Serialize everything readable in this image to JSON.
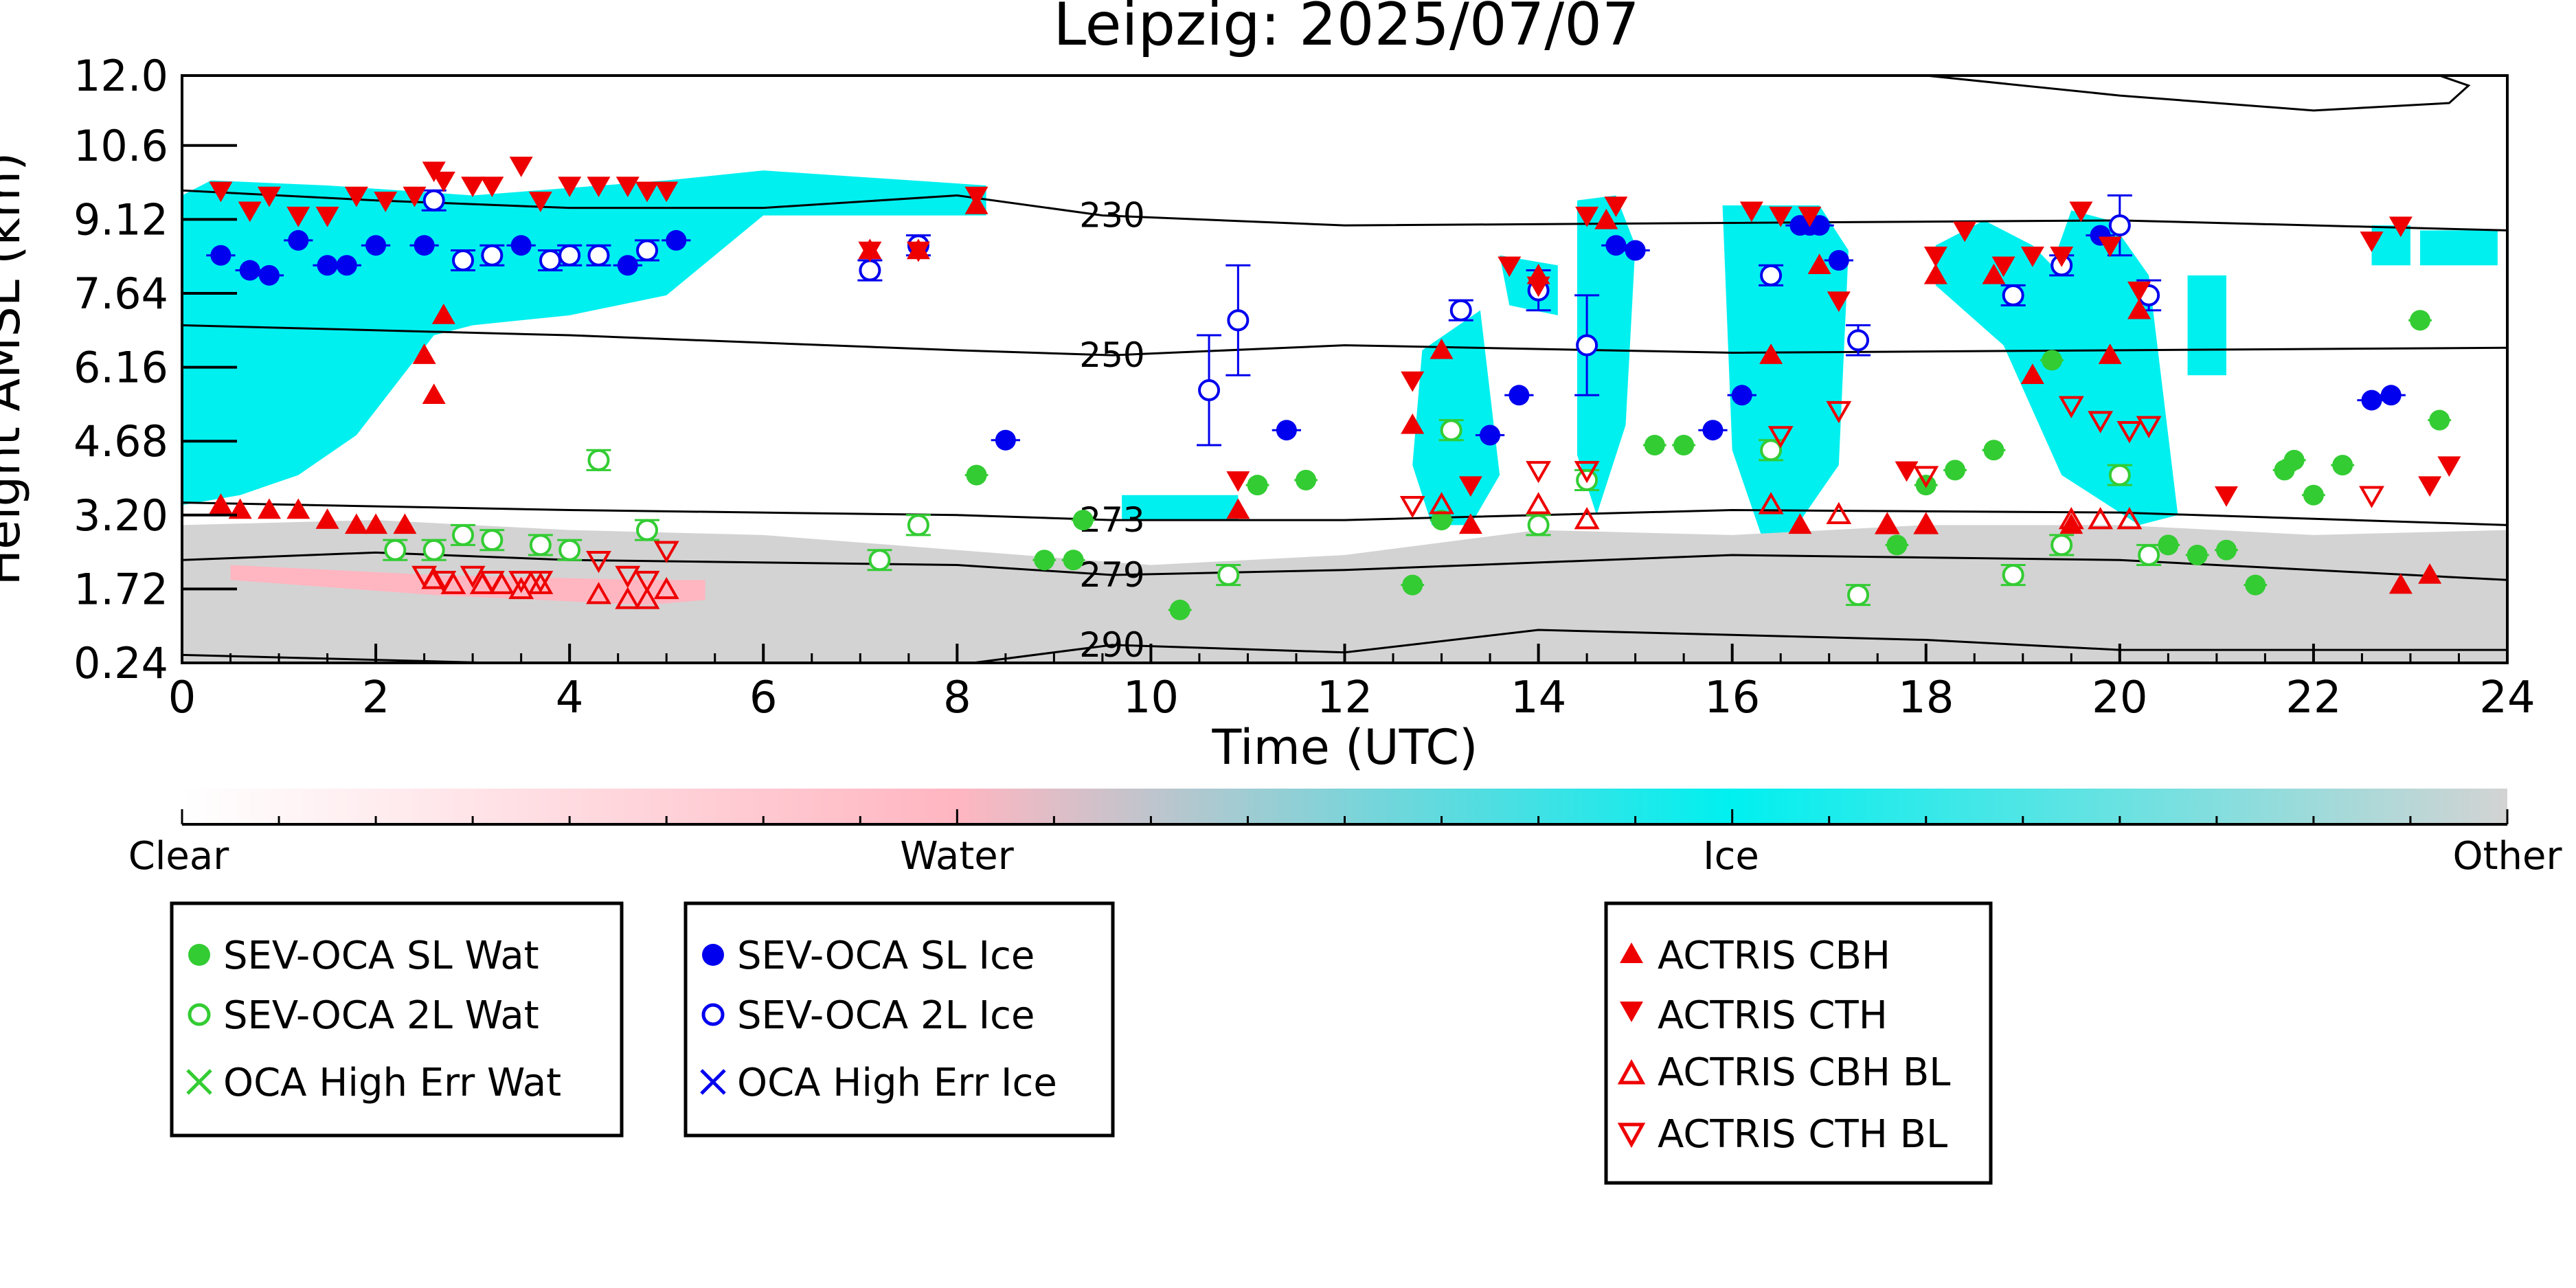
{
  "chart_data": {
    "type": "scatter",
    "title": "Leipzig: 2025/07/07",
    "xlabel": "Time (UTC)",
    "ylabel": "Height AMSL (km)",
    "xlim": [
      0,
      24
    ],
    "ylim": [
      0.24,
      12.0
    ],
    "x_ticks": [
      "0",
      "2",
      "4",
      "6",
      "8",
      "10",
      "12",
      "14",
      "16",
      "18",
      "20",
      "22",
      "24"
    ],
    "y_ticks": [
      "0.24",
      "1.72",
      "3.20",
      "4.68",
      "6.16",
      "7.64",
      "9.12",
      "10.6",
      "12.0"
    ],
    "colorbar": {
      "labels": [
        "Clear",
        "Water",
        "Ice",
        "Other"
      ],
      "colors": [
        "#ffffff",
        "#ffb6c1",
        "#00f0f0",
        "#d3d3d3"
      ]
    },
    "colors": {
      "sl_wat": "#33cc33",
      "sl_ice": "#0000ee",
      "actris": "#ee0000",
      "cyan": "#00f0f0",
      "pink": "#ffb6c1",
      "grey": "#d3d3d3"
    },
    "contours": [
      {
        "label": "230",
        "x": [
          0,
          2,
          4,
          6,
          8,
          9.5,
          12,
          16,
          20,
          24
        ],
        "y": [
          9.7,
          9.5,
          9.35,
          9.35,
          9.6,
          9.2,
          9.0,
          9.05,
          9.1,
          8.9
        ]
      },
      {
        "label": "250",
        "x": [
          0,
          4,
          8,
          9.6,
          12,
          16,
          20,
          24
        ],
        "y": [
          7.0,
          6.8,
          6.5,
          6.4,
          6.6,
          6.45,
          6.5,
          6.55
        ]
      },
      {
        "label": "273",
        "x": [
          0,
          4,
          8,
          9.6,
          12,
          16,
          20,
          24
        ],
        "y": [
          3.45,
          3.3,
          3.2,
          3.1,
          3.1,
          3.3,
          3.25,
          3.0
        ]
      },
      {
        "label": "279",
        "x": [
          0,
          2,
          4,
          6,
          8,
          9.6,
          12,
          16,
          20,
          24
        ],
        "y": [
          2.3,
          2.45,
          2.3,
          2.25,
          2.2,
          2.0,
          2.1,
          2.4,
          2.3,
          1.9
        ]
      },
      {
        "label": "290",
        "x": [
          0,
          4,
          8,
          9.6,
          12,
          14,
          16,
          18,
          20,
          24
        ],
        "y": [
          0.4,
          0.2,
          0.2,
          0.6,
          0.45,
          0.9,
          0.8,
          0.7,
          0.5,
          0.5
        ]
      },
      {
        "label": "",
        "x": [
          18,
          20,
          22,
          23.4,
          23.6,
          23.3
        ],
        "y": [
          12.0,
          11.6,
          11.3,
          11.45,
          11.8,
          12.0
        ]
      }
    ],
    "regions": [
      {
        "color": "#00f0f0",
        "x": [
          0,
          0.3,
          1.5,
          3,
          5,
          6,
          8.3,
          8.3,
          6,
          5,
          4,
          3,
          2.6,
          2.4,
          1.8,
          1.2,
          0.6,
          0
        ],
        "y": [
          9.6,
          9.9,
          9.8,
          9.6,
          9.9,
          10.1,
          9.8,
          9.2,
          9.2,
          7.6,
          7.2,
          7.0,
          6.8,
          6.3,
          4.8,
          4.0,
          3.6,
          3.4
        ]
      },
      {
        "color": "#00f0f0",
        "x": [
          9.7,
          10.9,
          10.9,
          9.7
        ],
        "y": [
          3.1,
          3.1,
          3.6,
          3.6
        ]
      },
      {
        "color": "#00f0f0",
        "x": [
          12.8,
          13.4,
          13.6,
          13.3,
          12.9,
          12.7
        ],
        "y": [
          6.5,
          7.3,
          4.0,
          3.0,
          3.0,
          4.2
        ]
      },
      {
        "color": "#00f0f0",
        "x": [
          13.6,
          14.2,
          14.2,
          13.7
        ],
        "y": [
          8.4,
          8.2,
          7.2,
          7.4
        ]
      },
      {
        "color": "#00f0f0",
        "x": [
          14.4,
          14.8,
          15.0,
          14.9,
          14.6,
          14.4
        ],
        "y": [
          9.5,
          9.6,
          8.6,
          5.0,
          3.2,
          4.4
        ]
      },
      {
        "color": "#00f0f0",
        "x": [
          15.9,
          16.9,
          17.2,
          17.1,
          16.6,
          16.3,
          16.0
        ],
        "y": [
          9.4,
          9.4,
          8.5,
          4.2,
          2.8,
          2.8,
          4.5
        ]
      },
      {
        "color": "#00f0f0",
        "x": [
          18.1,
          18.6,
          19.1,
          19.3,
          19.5,
          19.9,
          20.3,
          20.6,
          20.2,
          19.4,
          18.8,
          18.1
        ],
        "y": [
          8.6,
          9.1,
          8.6,
          8.2,
          9.3,
          9.1,
          8.0,
          3.2,
          3.0,
          4.0,
          6.6,
          7.8
        ]
      },
      {
        "color": "#00f0f0",
        "x": [
          20.7,
          21.1,
          21.1,
          20.7
        ],
        "y": [
          8.0,
          8.0,
          6.0,
          6.0
        ]
      },
      {
        "color": "#00f0f0",
        "x": [
          22.6,
          23.0,
          23.0,
          22.6
        ],
        "y": [
          9.0,
          9.0,
          8.2,
          8.2
        ]
      },
      {
        "color": "#00f0f0",
        "x": [
          23.1,
          23.9,
          23.9,
          23.1
        ],
        "y": [
          8.9,
          8.9,
          8.2,
          8.2
        ]
      },
      {
        "color": "#d3d3d3",
        "x": [
          0,
          2,
          4,
          6,
          8,
          10,
          12,
          14,
          16,
          18,
          20,
          22,
          24,
          24,
          0
        ],
        "y": [
          3.0,
          3.1,
          2.9,
          2.8,
          2.5,
          2.2,
          2.4,
          2.9,
          2.8,
          3.0,
          3.0,
          2.8,
          2.9,
          0.24,
          0.24
        ]
      },
      {
        "color": "#ffb6c1",
        "x": [
          0.5,
          2.6,
          4.8,
          5.4,
          5.4,
          4.8,
          2.6,
          0.5
        ],
        "y": [
          2.2,
          2.0,
          1.9,
          1.9,
          1.5,
          1.4,
          1.6,
          1.9
        ]
      }
    ],
    "series": [
      {
        "name": "SEV-OCA SL Wat",
        "marker": "circle-filled",
        "color": "#33cc33",
        "x": [
          8.2,
          8.9,
          9.2,
          9.3,
          10.3,
          11.1,
          11.6,
          12.7,
          13.0,
          15.2,
          15.5,
          17.7,
          18.0,
          18.3,
          18.7,
          19.3,
          20.5,
          20.8,
          21.1,
          21.4,
          21.7,
          21.8,
          22.0,
          22.3,
          23.1,
          23.3
        ],
        "y": [
          4.0,
          2.3,
          2.3,
          3.1,
          1.3,
          3.8,
          3.9,
          1.8,
          3.1,
          4.6,
          4.6,
          2.6,
          3.8,
          4.1,
          4.5,
          6.3,
          2.6,
          2.4,
          2.5,
          1.8,
          4.1,
          4.3,
          3.6,
          4.2,
          7.1,
          5.1
        ],
        "xerr": [
          0.12,
          0.12,
          0.12,
          0.12,
          0.12,
          0.12,
          0.12,
          0.12,
          0.12,
          0.12,
          0.12,
          0.12,
          0.12,
          0.12,
          0.12,
          0.12,
          0.12,
          0.12,
          0.12,
          0.12,
          0.12,
          0.12,
          0.12,
          0.12,
          0.12,
          0.12
        ]
      },
      {
        "name": "SEV-OCA 2L Wat",
        "marker": "circle-open",
        "color": "#33cc33",
        "x": [
          2.2,
          2.6,
          2.9,
          3.2,
          3.7,
          4.0,
          4.3,
          4.8,
          7.2,
          7.6,
          10.8,
          13.1,
          14.0,
          14.5,
          16.4,
          17.3,
          18.9,
          19.4,
          20.0,
          20.3
        ],
        "y": [
          2.5,
          2.5,
          2.8,
          2.7,
          2.6,
          2.5,
          4.3,
          2.9,
          2.3,
          3.0,
          2.0,
          4.9,
          3.0,
          3.9,
          4.5,
          1.6,
          2.0,
          2.6,
          4.0,
          2.4
        ],
        "yerr_low": [
          0.2,
          0.2,
          0.2,
          0.2,
          0.2,
          0.2,
          0.2,
          0.2,
          0.2,
          0.2,
          0.2,
          0.2,
          0.2,
          0.2,
          0.2,
          0.2,
          0.2,
          0.2,
          0.2,
          0.2
        ],
        "yerr_high": [
          0.2,
          0.2,
          0.2,
          0.2,
          0.2,
          0.2,
          0.2,
          0.2,
          0.2,
          0.2,
          0.2,
          0.2,
          0.2,
          0.2,
          0.2,
          0.2,
          0.2,
          0.2,
          0.2,
          0.2
        ]
      },
      {
        "name": "OCA High Err Wat",
        "marker": "x",
        "color": "#33cc33",
        "x": [],
        "y": []
      },
      {
        "name": "SEV-OCA SL Ice",
        "marker": "circle-filled",
        "color": "#0000ee",
        "x": [
          0.4,
          0.7,
          0.9,
          1.2,
          1.5,
          1.7,
          2.0,
          2.5,
          3.5,
          4.6,
          5.1,
          8.5,
          11.4,
          13.5,
          13.8,
          14.8,
          15.0,
          15.8,
          16.1,
          16.7,
          16.8,
          16.9,
          17.1,
          19.8,
          22.6,
          22.8
        ],
        "y": [
          8.4,
          8.1,
          8.0,
          8.7,
          8.2,
          8.2,
          8.6,
          8.6,
          8.6,
          8.2,
          8.7,
          4.7,
          4.9,
          4.8,
          5.6,
          8.6,
          8.5,
          4.9,
          5.6,
          9.0,
          9.0,
          9.0,
          8.3,
          8.8,
          5.5,
          5.6
        ],
        "xerr": [
          0.15,
          0.15,
          0.15,
          0.15,
          0.15,
          0.15,
          0.15,
          0.15,
          0.15,
          0.15,
          0.15,
          0.15,
          0.15,
          0.15,
          0.15,
          0.15,
          0.15,
          0.15,
          0.15,
          0.15,
          0.15,
          0.15,
          0.15,
          0.15,
          0.15,
          0.15
        ]
      },
      {
        "name": "SEV-OCA 2L Ice",
        "marker": "circle-open",
        "color": "#0000ee",
        "x": [
          2.6,
          2.9,
          3.2,
          3.8,
          4.0,
          4.3,
          4.8,
          7.1,
          7.6,
          10.6,
          10.9,
          13.2,
          14.0,
          14.5,
          16.4,
          17.3,
          18.9,
          19.4,
          20.0,
          20.3
        ],
        "y": [
          9.5,
          8.3,
          8.4,
          8.3,
          8.4,
          8.4,
          8.5,
          8.1,
          8.6,
          5.7,
          7.1,
          7.3,
          7.7,
          6.6,
          8.0,
          6.7,
          7.6,
          8.2,
          9.0,
          7.6
        ],
        "yerr_low": [
          0.2,
          0.2,
          0.2,
          0.2,
          0.2,
          0.2,
          0.2,
          0.2,
          0.2,
          1.1,
          1.1,
          0.2,
          0.4,
          1.0,
          0.2,
          0.3,
          0.2,
          0.2,
          0.6,
          0.3
        ],
        "yerr_high": [
          0.2,
          0.2,
          0.2,
          0.2,
          0.2,
          0.2,
          0.2,
          0.2,
          0.2,
          1.1,
          1.1,
          0.2,
          0.4,
          1.0,
          0.2,
          0.3,
          0.2,
          0.2,
          0.6,
          0.3
        ]
      },
      {
        "name": "OCA High Err Ice",
        "marker": "x",
        "color": "#0000ee",
        "x": [],
        "y": []
      },
      {
        "name": "ACTRIS CBH",
        "marker": "triangle-up-filled",
        "color": "#ee0000",
        "x": [
          0.4,
          0.6,
          0.9,
          1.2,
          1.5,
          1.8,
          2.0,
          2.3,
          2.5,
          2.6,
          2.7,
          7.1,
          7.6,
          8.2,
          10.9,
          12.7,
          13.0,
          13.3,
          14.0,
          14.7,
          16.4,
          16.7,
          16.9,
          17.6,
          18.0,
          18.1,
          18.7,
          19.1,
          19.5,
          19.9,
          20.2,
          22.9,
          23.2
        ],
        "y": [
          3.4,
          3.3,
          3.3,
          3.3,
          3.1,
          3.0,
          3.0,
          3.0,
          6.4,
          5.6,
          7.2,
          8.5,
          8.5,
          9.4,
          3.3,
          5.0,
          6.5,
          3.0,
          8.0,
          9.1,
          6.4,
          3.0,
          8.2,
          3.0,
          3.0,
          8.0,
          8.0,
          6.0,
          3.0,
          6.4,
          7.3,
          1.8,
          2.0
        ]
      },
      {
        "name": "ACTRIS CTH",
        "marker": "triangle-down-filled",
        "color": "#ee0000",
        "x": [
          0.4,
          0.7,
          0.9,
          1.2,
          1.5,
          1.8,
          2.1,
          2.4,
          2.6,
          2.7,
          3.0,
          3.2,
          3.5,
          3.7,
          4.0,
          4.3,
          4.6,
          4.8,
          5.0,
          7.1,
          7.6,
          8.2,
          10.9,
          12.7,
          13.3,
          13.7,
          14.0,
          14.5,
          14.8,
          16.2,
          16.5,
          16.8,
          17.1,
          17.8,
          18.1,
          18.4,
          18.8,
          19.1,
          19.4,
          19.6,
          19.9,
          20.2,
          21.1,
          22.6,
          22.9,
          23.2,
          23.4
        ],
        "y": [
          9.7,
          9.3,
          9.6,
          9.2,
          9.2,
          9.6,
          9.5,
          9.6,
          10.1,
          9.9,
          9.8,
          9.8,
          10.2,
          9.5,
          9.8,
          9.8,
          9.8,
          9.7,
          9.7,
          8.5,
          8.5,
          9.6,
          3.9,
          5.9,
          3.8,
          8.2,
          7.8,
          9.2,
          9.4,
          9.3,
          9.2,
          9.2,
          7.5,
          4.1,
          8.4,
          8.9,
          8.2,
          8.4,
          8.4,
          9.3,
          8.6,
          7.7,
          3.6,
          8.7,
          9.0,
          3.8,
          4.2
        ]
      },
      {
        "name": "ACTRIS CBH BL",
        "marker": "triangle-up-open",
        "color": "#ee0000",
        "x": [
          2.6,
          2.8,
          3.1,
          3.3,
          3.5,
          3.7,
          4.3,
          4.6,
          4.8,
          5.0,
          13.0,
          14.0,
          14.5,
          16.4,
          17.1,
          17.6,
          18.0,
          19.5,
          19.8,
          20.1
        ],
        "y": [
          1.9,
          1.8,
          1.8,
          1.8,
          1.7,
          1.8,
          1.6,
          1.5,
          1.5,
          1.7,
          3.4,
          3.4,
          3.1,
          3.4,
          3.2,
          3.0,
          3.0,
          3.1,
          3.1,
          3.1
        ]
      },
      {
        "name": "ACTRIS CTH BL",
        "marker": "triangle-down-open",
        "color": "#ee0000",
        "x": [
          2.5,
          2.7,
          3.0,
          3.2,
          3.5,
          3.7,
          4.3,
          4.6,
          4.8,
          5.0,
          12.7,
          14.0,
          14.5,
          16.5,
          17.1,
          18.0,
          19.5,
          19.8,
          20.1,
          20.3,
          22.6
        ],
        "y": [
          2.0,
          1.9,
          2.0,
          1.9,
          1.9,
          1.9,
          2.3,
          2.0,
          1.9,
          2.5,
          3.4,
          4.1,
          4.1,
          4.8,
          5.3,
          4.0,
          5.4,
          5.1,
          4.9,
          5.0,
          3.6
        ]
      }
    ]
  }
}
